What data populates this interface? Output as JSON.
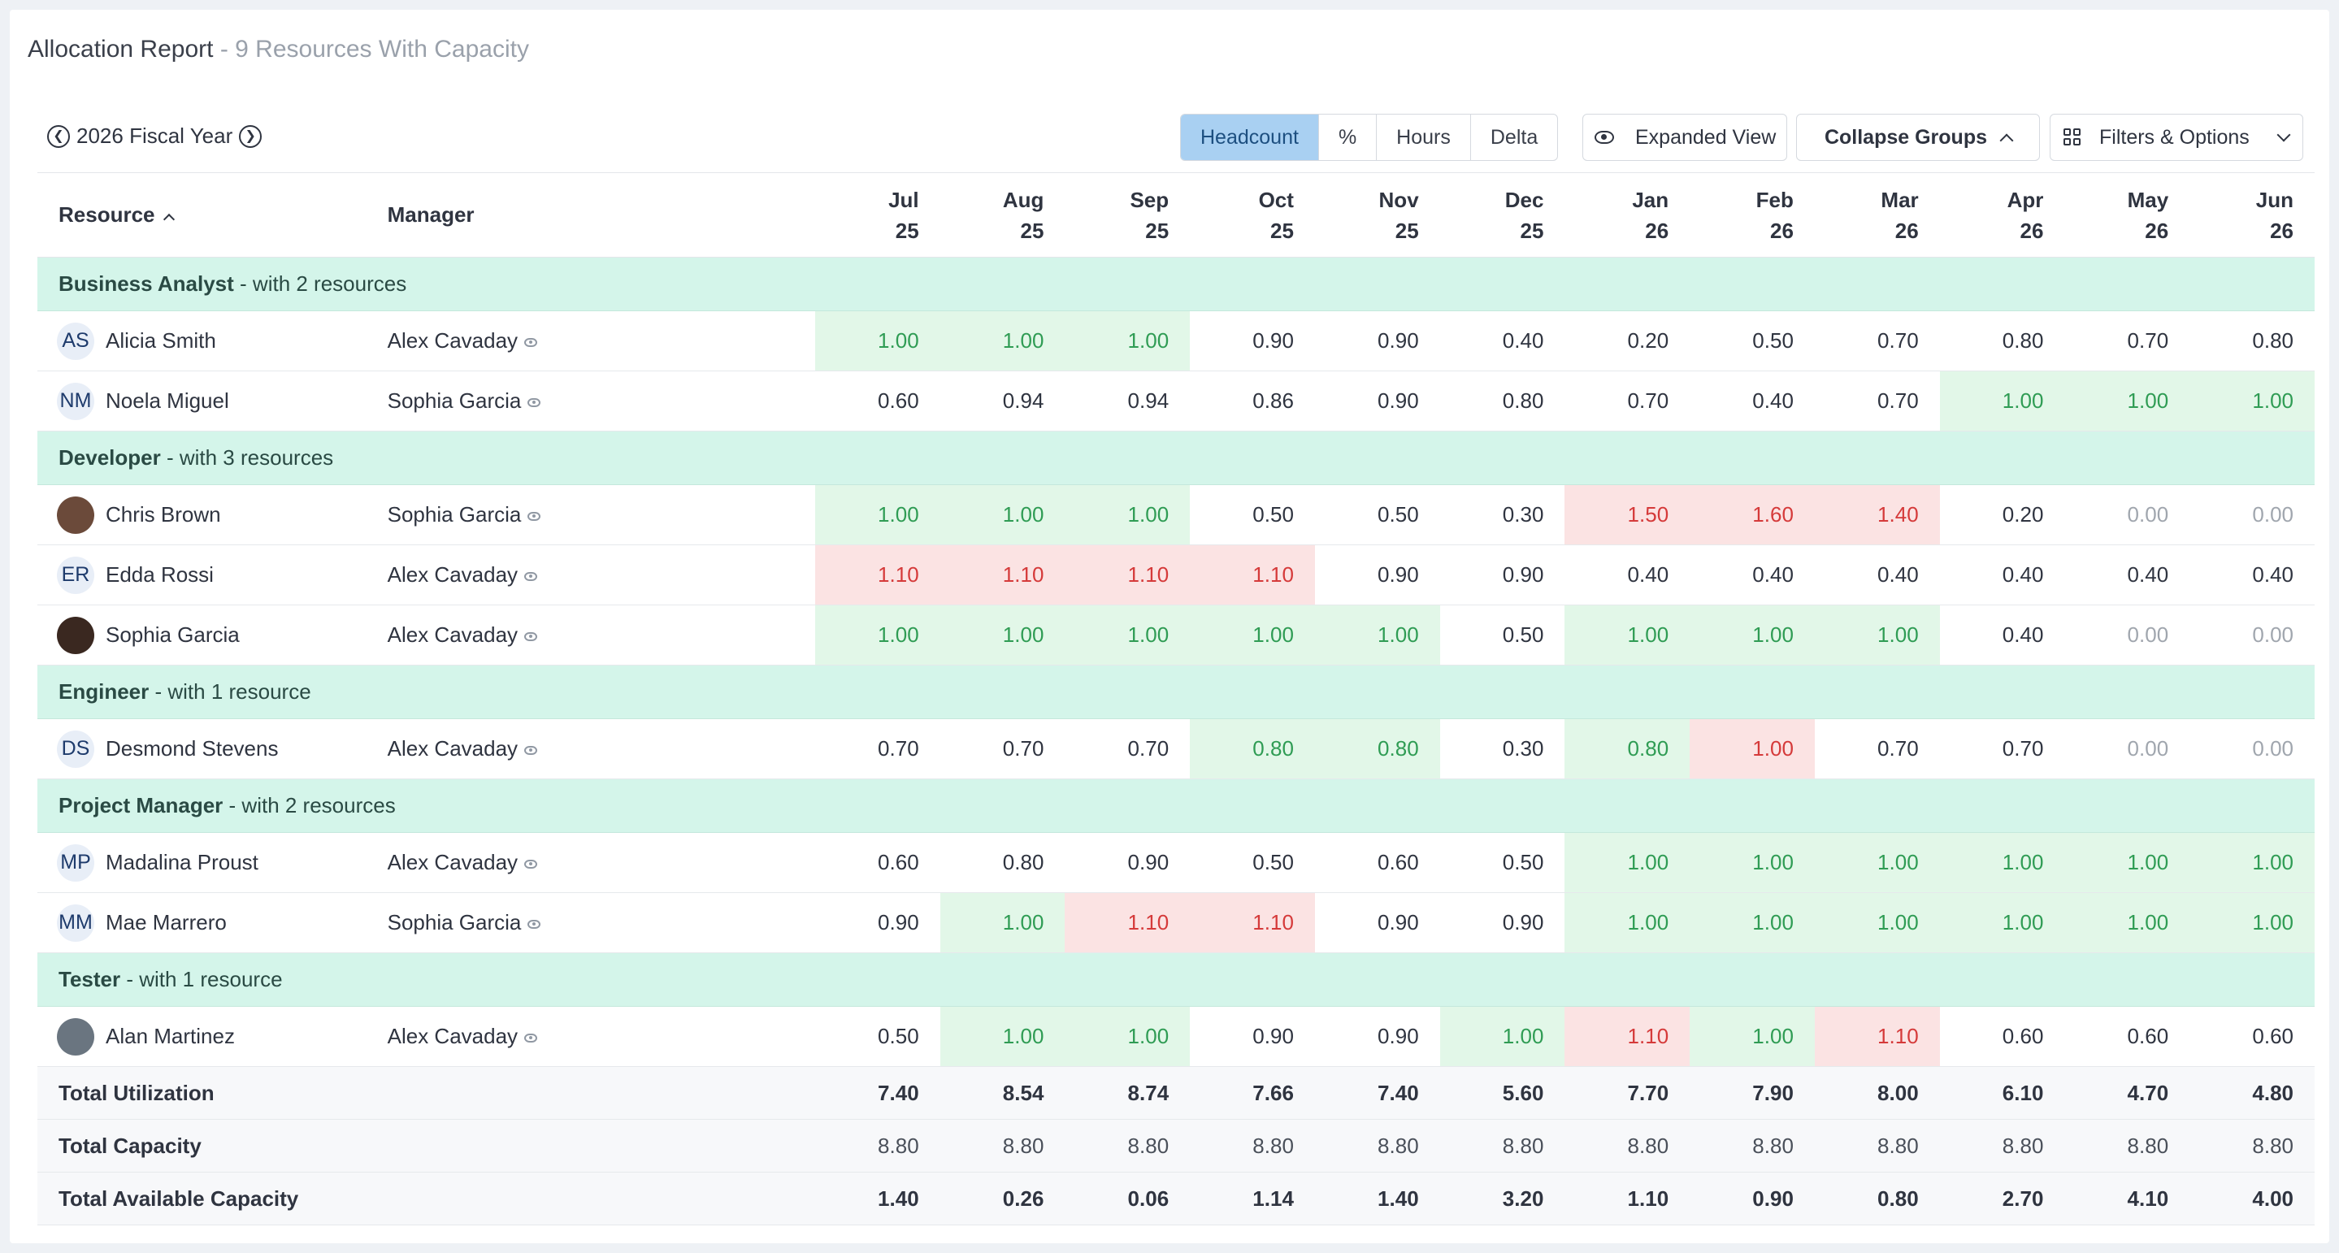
{
  "header": {
    "title": "Allocation Report",
    "subtitle": "- 9 Resources With Capacity"
  },
  "toolbar": {
    "fiscal_year": "2026 Fiscal Year",
    "prev_icon": "chevron-left-circle-icon",
    "next_icon": "chevron-right-circle-icon",
    "modes": [
      "Headcount",
      "%",
      "Hours",
      "Delta"
    ],
    "active_mode": "Headcount",
    "expanded_view": "Expanded View",
    "collapse_groups": "Collapse Groups",
    "filters": "Filters & Options"
  },
  "columns": {
    "resource": "Resource",
    "manager": "Manager",
    "months": [
      {
        "m": "Jul",
        "y": "25"
      },
      {
        "m": "Aug",
        "y": "25"
      },
      {
        "m": "Sep",
        "y": "25"
      },
      {
        "m": "Oct",
        "y": "25"
      },
      {
        "m": "Nov",
        "y": "25"
      },
      {
        "m": "Dec",
        "y": "25"
      },
      {
        "m": "Jan",
        "y": "26"
      },
      {
        "m": "Feb",
        "y": "26"
      },
      {
        "m": "Mar",
        "y": "26"
      },
      {
        "m": "Apr",
        "y": "26"
      },
      {
        "m": "May",
        "y": "26"
      },
      {
        "m": "Jun",
        "y": "26"
      }
    ]
  },
  "groups": [
    {
      "name": "Business Analyst",
      "sub": "- with 2 resources",
      "rows": [
        {
          "initials": "AS",
          "name": "Alicia Smith",
          "manager": "Alex Cavaday",
          "values": [
            "1.00",
            "1.00",
            "1.00",
            "0.90",
            "0.90",
            "0.40",
            "0.20",
            "0.50",
            "0.70",
            "0.80",
            "0.70",
            "0.80"
          ],
          "states": [
            "g",
            "g",
            "g",
            "n",
            "n",
            "n",
            "n",
            "n",
            "n",
            "n",
            "n",
            "n"
          ]
        },
        {
          "initials": "NM",
          "name": "Noela Miguel",
          "manager": "Sophia Garcia",
          "values": [
            "0.60",
            "0.94",
            "0.94",
            "0.86",
            "0.90",
            "0.80",
            "0.70",
            "0.40",
            "0.70",
            "1.00",
            "1.00",
            "1.00"
          ],
          "states": [
            "n",
            "n",
            "n",
            "n",
            "n",
            "n",
            "n",
            "n",
            "n",
            "g",
            "g",
            "g"
          ]
        }
      ]
    },
    {
      "name": "Developer",
      "sub": "- with 3 resources",
      "rows": [
        {
          "photo": "photo",
          "name": "Chris Brown",
          "manager": "Sophia Garcia",
          "values": [
            "1.00",
            "1.00",
            "1.00",
            "0.50",
            "0.50",
            "0.30",
            "1.50",
            "1.60",
            "1.40",
            "0.20",
            "0.00",
            "0.00"
          ],
          "states": [
            "g",
            "g",
            "g",
            "n",
            "n",
            "n",
            "r",
            "r",
            "r",
            "n",
            "z",
            "z"
          ]
        },
        {
          "initials": "ER",
          "name": "Edda Rossi",
          "manager": "Alex Cavaday",
          "values": [
            "1.10",
            "1.10",
            "1.10",
            "1.10",
            "0.90",
            "0.90",
            "0.40",
            "0.40",
            "0.40",
            "0.40",
            "0.40",
            "0.40"
          ],
          "states": [
            "r",
            "r",
            "r",
            "r",
            "n",
            "n",
            "n",
            "n",
            "n",
            "n",
            "n",
            "n"
          ]
        },
        {
          "photo": "photo-dark",
          "name": "Sophia Garcia",
          "manager": "Alex Cavaday",
          "values": [
            "1.00",
            "1.00",
            "1.00",
            "1.00",
            "1.00",
            "0.50",
            "1.00",
            "1.00",
            "1.00",
            "0.40",
            "0.00",
            "0.00"
          ],
          "states": [
            "g",
            "g",
            "g",
            "g",
            "g",
            "n",
            "g",
            "g",
            "g",
            "n",
            "z",
            "z"
          ]
        }
      ]
    },
    {
      "name": "Engineer",
      "sub": "- with 1 resource",
      "rows": [
        {
          "initials": "DS",
          "name": "Desmond Stevens",
          "manager": "Alex Cavaday",
          "values": [
            "0.70",
            "0.70",
            "0.70",
            "0.80",
            "0.80",
            "0.30",
            "0.80",
            "1.00",
            "0.70",
            "0.70",
            "0.00",
            "0.00"
          ],
          "states": [
            "n",
            "n",
            "n",
            "g",
            "g",
            "n",
            "g",
            "r",
            "n",
            "n",
            "z",
            "z"
          ]
        }
      ]
    },
    {
      "name": "Project Manager",
      "sub": "- with 2 resources",
      "rows": [
        {
          "initials": "MP",
          "name": "Madalina Proust",
          "manager": "Alex Cavaday",
          "values": [
            "0.60",
            "0.80",
            "0.90",
            "0.50",
            "0.60",
            "0.50",
            "1.00",
            "1.00",
            "1.00",
            "1.00",
            "1.00",
            "1.00"
          ],
          "states": [
            "n",
            "n",
            "n",
            "n",
            "n",
            "n",
            "g",
            "g",
            "g",
            "g",
            "g",
            "g"
          ]
        },
        {
          "initials": "MM",
          "name": "Mae Marrero",
          "manager": "Sophia Garcia",
          "values": [
            "0.90",
            "1.00",
            "1.10",
            "1.10",
            "0.90",
            "0.90",
            "1.00",
            "1.00",
            "1.00",
            "1.00",
            "1.00",
            "1.00"
          ],
          "states": [
            "n",
            "g",
            "r",
            "r",
            "n",
            "n",
            "g",
            "g",
            "g",
            "g",
            "g",
            "g"
          ]
        }
      ]
    },
    {
      "name": "Tester",
      "sub": "- with 1 resource",
      "rows": [
        {
          "photo": "photo-light",
          "name": "Alan Martinez",
          "manager": "Alex Cavaday",
          "values": [
            "0.50",
            "1.00",
            "1.00",
            "0.90",
            "0.90",
            "1.00",
            "1.10",
            "1.00",
            "1.10",
            "0.60",
            "0.60",
            "0.60"
          ],
          "states": [
            "n",
            "g",
            "g",
            "n",
            "n",
            "g",
            "r",
            "g",
            "r",
            "n",
            "n",
            "n"
          ]
        }
      ]
    }
  ],
  "totals": [
    {
      "label": "Total Utilization",
      "kind": "bold",
      "values": [
        "7.40",
        "8.54",
        "8.74",
        "7.66",
        "7.40",
        "5.60",
        "7.70",
        "7.90",
        "8.00",
        "6.10",
        "4.70",
        "4.80"
      ]
    },
    {
      "label": "Total Capacity",
      "kind": "cap",
      "values": [
        "8.80",
        "8.80",
        "8.80",
        "8.80",
        "8.80",
        "8.80",
        "8.80",
        "8.80",
        "8.80",
        "8.80",
        "8.80",
        "8.80"
      ]
    },
    {
      "label": "Total Available Capacity",
      "kind": "bold",
      "values": [
        "1.40",
        "0.26",
        "0.06",
        "1.14",
        "1.40",
        "3.20",
        "1.10",
        "0.90",
        "0.80",
        "2.70",
        "4.10",
        "4.00"
      ]
    }
  ],
  "colors": {
    "over_allocated": "#d53a3a",
    "full_allocated": "#2f9c54",
    "group_band": "#d4f5ea",
    "active_mode": "#a9d0f2"
  }
}
